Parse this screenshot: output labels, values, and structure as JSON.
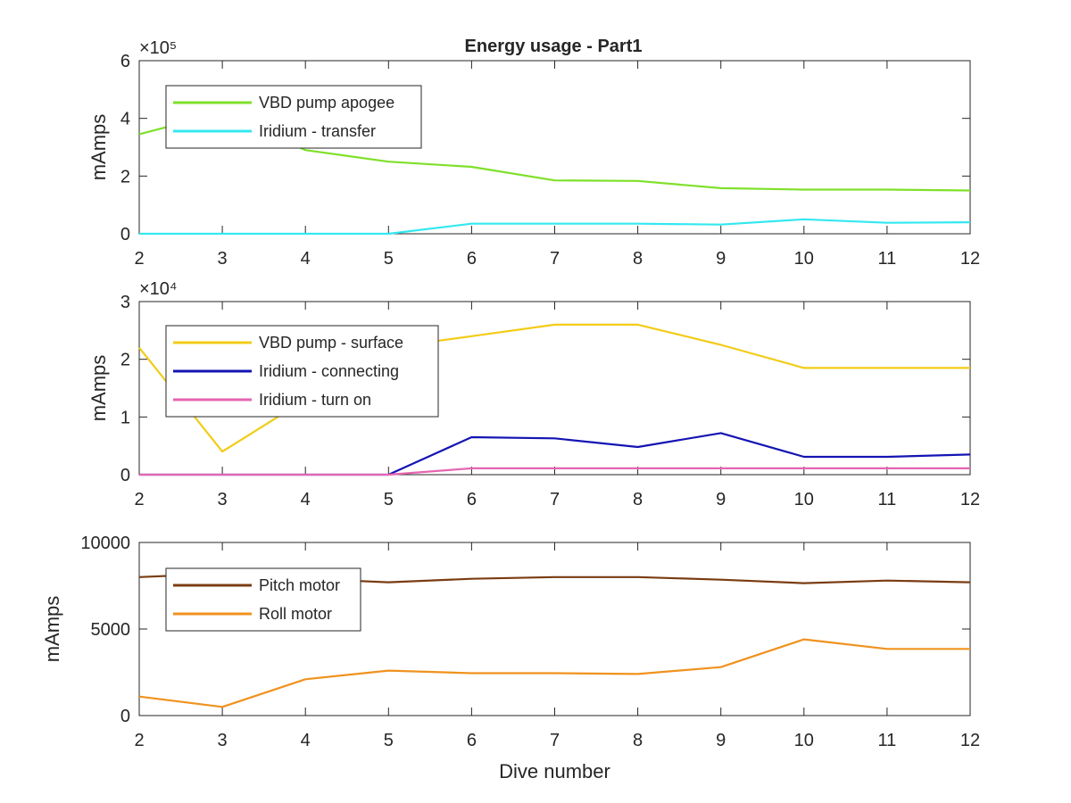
{
  "title": "Energy usage - Part1",
  "chart_data": [
    {
      "type": "line",
      "title": "Energy usage - Part1",
      "xlabel": "",
      "ylabel": "mAmps",
      "xlim": [
        2,
        12
      ],
      "ylim": [
        0,
        600000
      ],
      "exponent_label": "×10⁵",
      "x_ticks": [
        "2",
        "3",
        "4",
        "5",
        "6",
        "7",
        "8",
        "9",
        "10",
        "11",
        "12"
      ],
      "y_ticks": [
        {
          "value": 0,
          "label": "0"
        },
        {
          "value": 200000,
          "label": "2"
        },
        {
          "value": 400000,
          "label": "4"
        },
        {
          "value": 600000,
          "label": "6"
        }
      ],
      "grid": false,
      "legend": "top-left",
      "x": [
        2,
        3,
        4,
        5,
        6,
        7,
        8,
        9,
        10,
        11,
        12
      ],
      "series": [
        {
          "name": "VBD pump apogee",
          "color": "#7fe02a",
          "values": [
            345000,
            420000,
            290000,
            250000,
            232000,
            185000,
            183000,
            158000,
            153000,
            153000,
            150000
          ]
        },
        {
          "name": "Iridium - transfer",
          "color": "#33e8f0",
          "values": [
            0,
            0,
            0,
            0,
            35000,
            35000,
            35000,
            32000,
            50000,
            38000,
            40000
          ]
        }
      ]
    },
    {
      "type": "line",
      "title": "",
      "xlabel": "",
      "ylabel": "mAmps",
      "xlim": [
        2,
        12
      ],
      "ylim": [
        0,
        30000
      ],
      "exponent_label": "×10⁴",
      "x_ticks": [
        "2",
        "3",
        "4",
        "5",
        "6",
        "7",
        "8",
        "9",
        "10",
        "11",
        "12"
      ],
      "y_ticks": [
        {
          "value": 0,
          "label": "0"
        },
        {
          "value": 10000,
          "label": "1"
        },
        {
          "value": 20000,
          "label": "2"
        },
        {
          "value": 30000,
          "label": "3"
        }
      ],
      "grid": false,
      "legend": "top-left",
      "x": [
        2,
        3,
        4,
        5,
        6,
        7,
        8,
        9,
        10,
        11,
        12
      ],
      "series": [
        {
          "name": "VBD pump - surface",
          "color": "#f2cc17",
          "values": [
            22000,
            4000,
            13000,
            22000,
            24000,
            26000,
            26000,
            22500,
            18500,
            18500,
            18500
          ]
        },
        {
          "name": "Iridium - connecting",
          "color": "#1414b4",
          "values": [
            0,
            0,
            0,
            0,
            6500,
            6300,
            4800,
            7200,
            3100,
            3100,
            3500
          ]
        },
        {
          "name": "Iridium - turn on",
          "color": "#e565b0",
          "values": [
            0,
            0,
            0,
            0,
            1100,
            1100,
            1100,
            1100,
            1100,
            1100,
            1100
          ]
        }
      ]
    },
    {
      "type": "line",
      "title": "",
      "xlabel": "Dive number",
      "ylabel": "mAmps",
      "xlim": [
        2,
        12
      ],
      "ylim": [
        0,
        10000
      ],
      "exponent_label": "",
      "x_ticks": [
        "2",
        "3",
        "4",
        "5",
        "6",
        "7",
        "8",
        "9",
        "10",
        "11",
        "12"
      ],
      "y_ticks": [
        {
          "value": 0,
          "label": "0"
        },
        {
          "value": 5000,
          "label": "5000"
        },
        {
          "value": 10000,
          "label": "10000"
        }
      ],
      "grid": false,
      "legend": "top-left",
      "x": [
        2,
        3,
        4,
        5,
        6,
        7,
        8,
        9,
        10,
        11,
        12
      ],
      "series": [
        {
          "name": "Pitch motor",
          "color": "#7a3c12",
          "values": [
            8000,
            8200,
            7900,
            7700,
            7900,
            8000,
            8000,
            7850,
            7650,
            7800,
            7700
          ]
        },
        {
          "name": "Roll motor",
          "color": "#f0921e",
          "values": [
            1100,
            500,
            2100,
            2600,
            2450,
            2450,
            2400,
            2800,
            4400,
            3850,
            3850
          ]
        }
      ]
    }
  ]
}
